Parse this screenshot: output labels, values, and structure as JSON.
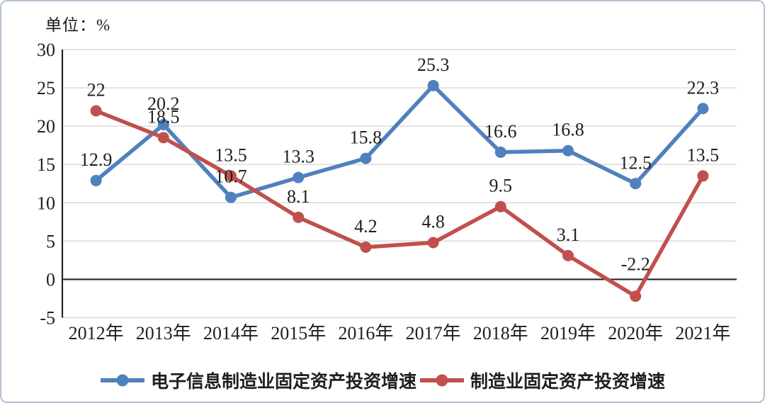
{
  "chart_data": {
    "type": "line",
    "title": "",
    "unit_label": "单位：%",
    "categories": [
      "2012年",
      "2013年",
      "2014年",
      "2015年",
      "2016年",
      "2017年",
      "2018年",
      "2019年",
      "2020年",
      "2021年"
    ],
    "series": [
      {
        "name": "电子信息制造业固定资产投资增速",
        "color": "#4F81BD",
        "values": [
          12.9,
          20.2,
          10.7,
          13.3,
          15.8,
          25.3,
          16.6,
          16.8,
          12.5,
          22.3
        ]
      },
      {
        "name": "制造业固定资产投资增速",
        "color": "#C0504D",
        "values": [
          22,
          18.5,
          13.5,
          8.1,
          4.2,
          4.8,
          9.5,
          3.1,
          -2.2,
          13.5
        ]
      }
    ],
    "ylim": [
      -5,
      30
    ],
    "ytick_step": 5,
    "grid": true,
    "data_labels": true,
    "legend_position": "bottom",
    "grid_color": "#d9d9d9",
    "axis_color": "#262626",
    "text_color": "#1f1f1f"
  }
}
